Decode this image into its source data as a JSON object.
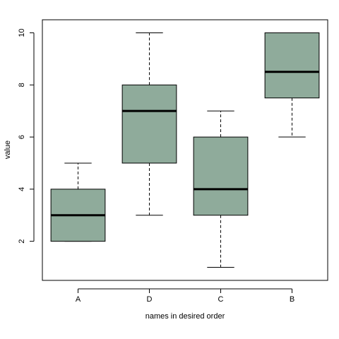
{
  "chart_data": {
    "type": "boxplot",
    "title": "",
    "xlabel": "names in desired order",
    "ylabel": "value",
    "ylim": [
      0.5,
      10.5
    ],
    "y_ticks": [
      2,
      4,
      6,
      8,
      10
    ],
    "categories": [
      "A",
      "D",
      "C",
      "B"
    ],
    "boxes": [
      {
        "name": "A",
        "min": 2,
        "q1": 2,
        "median": 3,
        "q3": 4,
        "max": 5
      },
      {
        "name": "D",
        "min": 3,
        "q1": 5,
        "median": 7,
        "q3": 8,
        "max": 10
      },
      {
        "name": "C",
        "min": 1,
        "q1": 3,
        "median": 4,
        "q3": 6,
        "max": 7
      },
      {
        "name": "B",
        "min": 6,
        "q1": 7.5,
        "median": 8.5,
        "q3": 10,
        "max": 10
      }
    ],
    "box_fill": "#8fab9b",
    "grid": false,
    "legend": "none"
  }
}
